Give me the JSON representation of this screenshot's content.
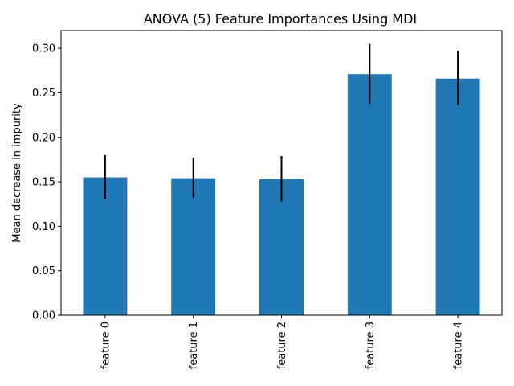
{
  "chart_data": {
    "type": "bar",
    "title": "ANOVA (5) Feature Importances Using MDI",
    "xlabel": "",
    "ylabel": "Mean decrease in impurity",
    "categories": [
      "feature 0",
      "feature 1",
      "feature 2",
      "feature 3",
      "feature 4"
    ],
    "values": [
      0.155,
      0.154,
      0.153,
      0.271,
      0.266
    ],
    "errors": [
      [
        0.13,
        0.18
      ],
      [
        0.132,
        0.177
      ],
      [
        0.128,
        0.179
      ],
      [
        0.238,
        0.305
      ],
      [
        0.236,
        0.297
      ]
    ],
    "ylim": [
      0,
      0.32
    ],
    "yticks": [
      0.0,
      0.05,
      0.1,
      0.15,
      0.2,
      0.25,
      0.3
    ],
    "ytick_labels": [
      "0.00",
      "0.05",
      "0.10",
      "0.15",
      "0.20",
      "0.25",
      "0.30"
    ],
    "xtick_rotation": "vertical",
    "grid": false,
    "legend": "none",
    "colors": {
      "bar": "#1f77b4",
      "error_bar": "#000000",
      "axes": "#000000",
      "background": "#ffffff"
    }
  }
}
